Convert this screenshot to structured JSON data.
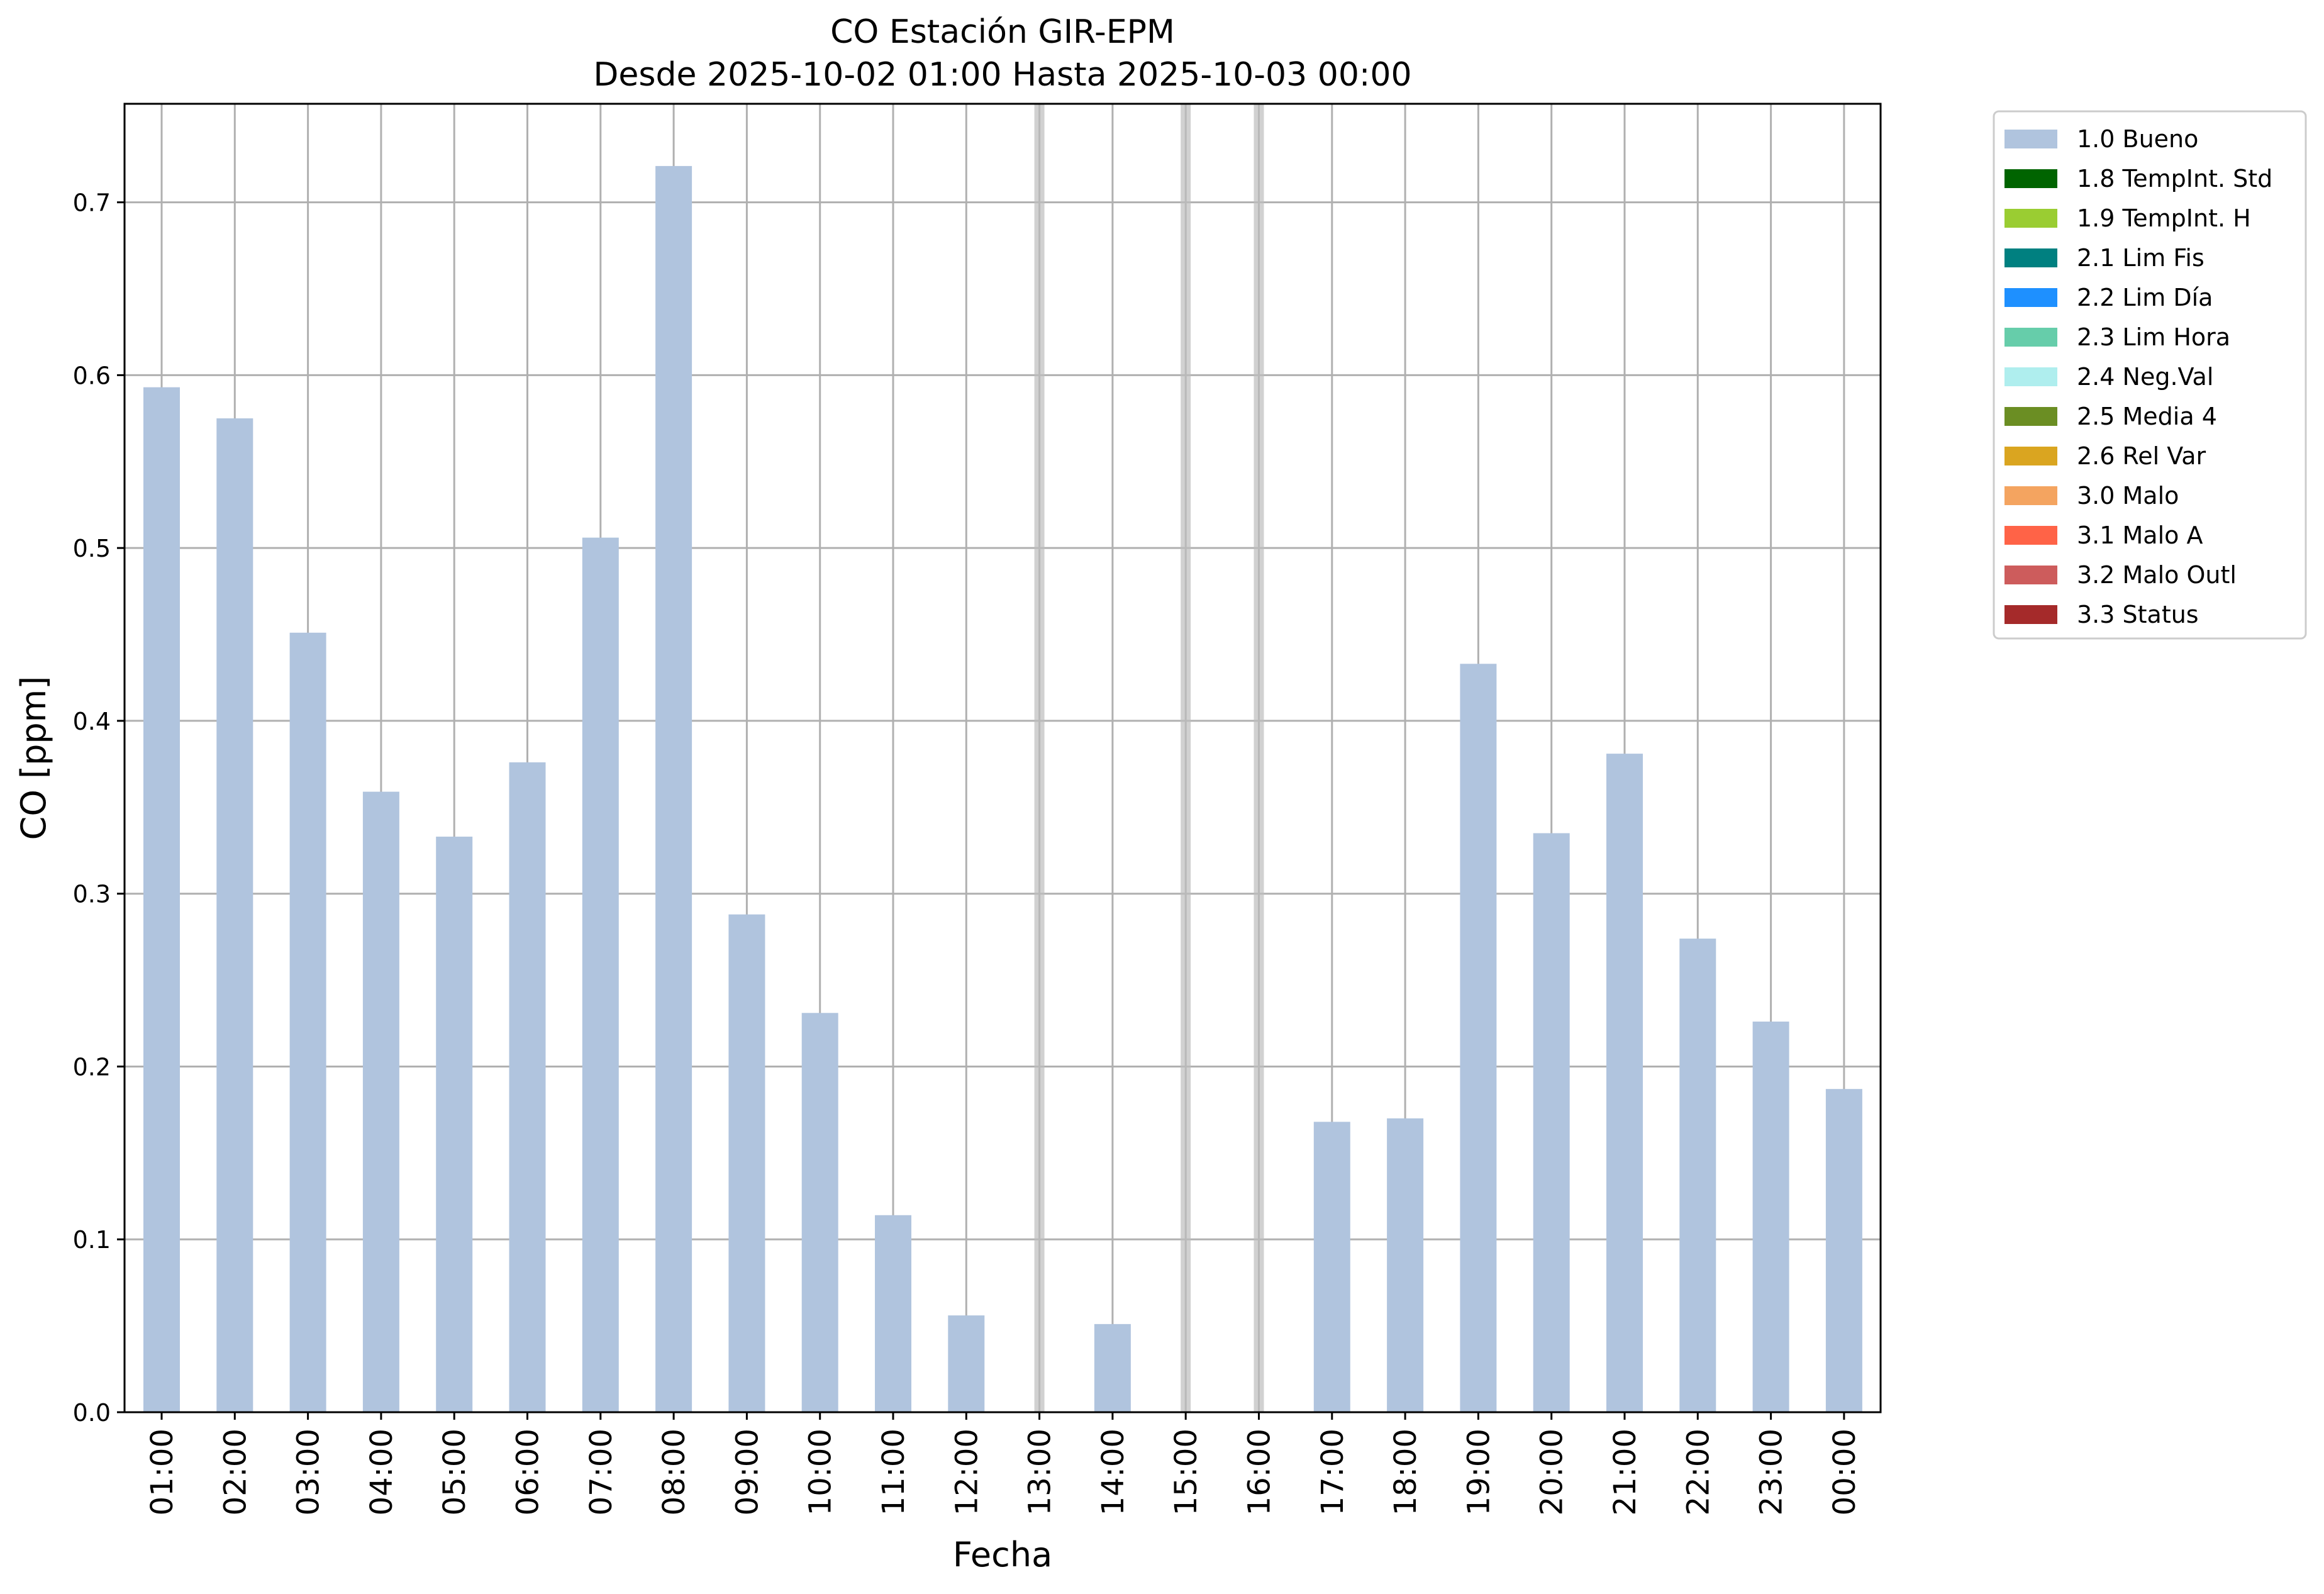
{
  "chart_data": {
    "type": "bar",
    "title": "CO Estación GIR-EPM",
    "subtitle": "Desde 2025-10-02 01:00 Hasta 2025-10-03 00:00",
    "xlabel": "Fecha",
    "ylabel": "CO [ppm]",
    "ylim": [
      0,
      0.757
    ],
    "yticks": [
      "0.0",
      "0.1",
      "0.2",
      "0.3",
      "0.4",
      "0.5",
      "0.6",
      "0.7"
    ],
    "grid": true,
    "legend_position": "outside-top-right",
    "categories": [
      "01:00",
      "02:00",
      "03:00",
      "04:00",
      "05:00",
      "06:00",
      "07:00",
      "08:00",
      "09:00",
      "10:00",
      "11:00",
      "12:00",
      "13:00",
      "14:00",
      "15:00",
      "16:00",
      "17:00",
      "18:00",
      "19:00",
      "20:00",
      "21:00",
      "22:00",
      "23:00",
      "00:00"
    ],
    "series": [
      {
        "name": "1.0 Bueno",
        "color": "#b0c4de",
        "values": [
          0.593,
          0.575,
          0.451,
          0.359,
          0.333,
          0.376,
          0.506,
          0.721,
          0.288,
          0.231,
          0.114,
          0.056,
          null,
          0.051,
          null,
          null,
          0.168,
          0.17,
          0.433,
          0.335,
          0.381,
          0.274,
          0.226,
          0.187
        ]
      }
    ],
    "missing_markers": [
      "13:00",
      "15:00",
      "16:00"
    ],
    "legend": [
      {
        "label": "1.0 Bueno",
        "color": "#b0c4de"
      },
      {
        "label": "1.8 TempInt. Std",
        "color": "#006400"
      },
      {
        "label": "1.9 TempInt. H",
        "color": "#9acd32"
      },
      {
        "label": "2.1 Lim Fis",
        "color": "#008080"
      },
      {
        "label": "2.2 Lim Día",
        "color": "#1e90ff"
      },
      {
        "label": "2.3 Lim Hora",
        "color": "#66cdaa"
      },
      {
        "label": "2.4 Neg.Val",
        "color": "#afeeee"
      },
      {
        "label": "2.5 Media 4",
        "color": "#6b8e23"
      },
      {
        "label": "2.6 Rel Var",
        "color": "#daa520"
      },
      {
        "label": "3.0 Malo",
        "color": "#f4a460"
      },
      {
        "label": "3.1 Malo A",
        "color": "#ff6347"
      },
      {
        "label": "3.2 Malo Outl",
        "color": "#cd5c5c"
      },
      {
        "label": "3.3 Status",
        "color": "#a52a2a"
      }
    ]
  }
}
